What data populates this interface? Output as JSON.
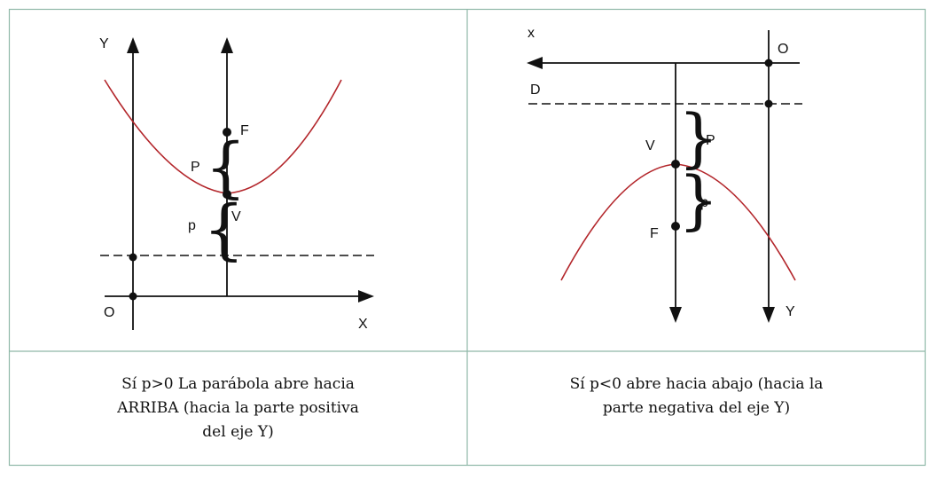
{
  "left_panel": {
    "axis_y_label": "Y",
    "axis_x_label": "X",
    "origin_label": "O",
    "focus_label": "F",
    "vertex_label": "V",
    "upper_p_label": "P",
    "lower_p_label": "p",
    "caption_lines": [
      "Sí p>0 La parábola abre hacia",
      "ARRIBA (hacia la parte positiva",
      "del eje Y)"
    ]
  },
  "right_panel": {
    "axis_x_label": "x",
    "axis_y_label": "Y",
    "origin_label": "O",
    "directrix_label": "D",
    "vertex_label": "V",
    "focus_label": "F",
    "upper_p_label": "P",
    "lower_p_label": "p",
    "caption_lines": [
      "Sí p<0 abre hacia abajo (hacia la",
      "parte negativa del eje Y)"
    ]
  },
  "colors": {
    "grid": "#8fb8a8",
    "curve": "#b3262b",
    "ink": "#111111"
  }
}
